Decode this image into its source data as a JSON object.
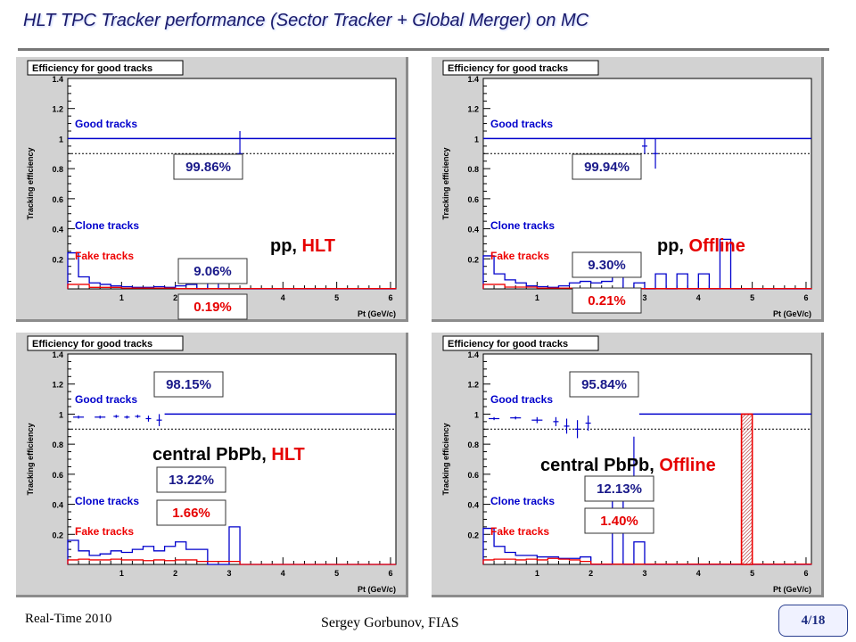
{
  "slide": {
    "title": "HLT TPC Tracker performance (Sector Tracker + Global Merger) on MC",
    "footer_left": "Real-Time 2010",
    "footer_center": "Sergey Gorbunov, FIAS",
    "page": "4/18"
  },
  "colors": {
    "good": "#0000cc",
    "fake": "#ee0000",
    "label_red": "#e60000",
    "hatch": "#c06060"
  },
  "chart_data": [
    {
      "type": "line",
      "panel_title": "Efficiency for good tracks",
      "ylabel": "Tracking efficiency",
      "xlabel": "Pt (GeV/c)",
      "xlim": [
        0,
        6.1
      ],
      "ylim": [
        0,
        1.4
      ],
      "xticks": [
        "1",
        "2",
        "3",
        "4",
        "5",
        "6"
      ],
      "yticks": [
        "0.2",
        "0.4",
        "0.6",
        "0.8",
        "1",
        "1.2",
        "1.4"
      ],
      "label_parts": [
        "pp, ",
        "HLT"
      ],
      "legend": {
        "good": "Good tracks",
        "clone": "Clone tracks",
        "fake": "Fake tracks"
      },
      "values": {
        "good": "99.86%",
        "clone": "9.06%",
        "fake": "0.19%"
      },
      "series": [
        {
          "name": "Good tracks",
          "kind": "points",
          "color": "good",
          "points": [
            [
              3.2,
              0.9,
              0.1,
              0.15
            ]
          ]
        },
        {
          "name": "Good tracks",
          "kind": "hline",
          "color": "good",
          "y": 1.0
        },
        {
          "name": "Clone tracks",
          "kind": "hist",
          "color": "good",
          "edges": [
            0,
            0.2,
            0.4,
            0.6,
            0.8,
            1.0,
            1.2,
            1.4,
            1.6,
            1.8,
            2.0,
            2.2,
            2.4,
            2.6,
            2.8,
            3.0,
            6.1
          ],
          "values": [
            0.24,
            0.08,
            0.04,
            0.03,
            0.02,
            0.015,
            0.01,
            0.01,
            0.015,
            0.01,
            0.02,
            0.03,
            0,
            0.08,
            0,
            0
          ]
        },
        {
          "name": "Fake tracks",
          "kind": "hist",
          "color": "fake",
          "edges": [
            0,
            0.4,
            1.0,
            2.0,
            6.1
          ],
          "values": [
            0.03,
            0.01,
            0.005,
            0.002
          ]
        }
      ]
    },
    {
      "type": "line",
      "panel_title": "Efficiency for good tracks",
      "ylabel": "Tracking efficiency",
      "xlabel": "Pt (GeV/c)",
      "xlim": [
        0,
        6.1
      ],
      "ylim": [
        0,
        1.4
      ],
      "xticks": [
        "1",
        "2",
        "3",
        "4",
        "5",
        "6"
      ],
      "yticks": [
        "0.2",
        "0.4",
        "0.6",
        "0.8",
        "1",
        "1.2",
        "1.4"
      ],
      "label_parts": [
        "pp, ",
        "Offline"
      ],
      "legend": {
        "good": "Good tracks",
        "clone": "Clone tracks",
        "fake": "Fake tracks"
      },
      "values": {
        "good": "99.94%",
        "clone": "9.30%",
        "fake": "0.21%"
      },
      "series": [
        {
          "name": "Good tracks",
          "kind": "points",
          "color": "good",
          "points": [
            [
              3.0,
              0.95,
              0.1,
              0.05
            ],
            [
              3.2,
              0.9,
              0.1,
              0.1
            ]
          ]
        },
        {
          "name": "Good tracks",
          "kind": "hline",
          "color": "good",
          "y": 1.0
        },
        {
          "name": "Clone tracks",
          "kind": "hist",
          "color": "good",
          "edges": [
            0,
            0.2,
            0.4,
            0.6,
            0.8,
            1.0,
            1.2,
            1.4,
            1.6,
            1.8,
            2.0,
            2.2,
            2.4,
            2.6,
            2.8,
            3.0,
            3.2,
            3.4,
            3.6,
            3.8,
            4.0,
            4.2,
            4.4,
            4.6,
            6.1
          ],
          "values": [
            0.22,
            0.1,
            0.06,
            0.04,
            0.02,
            0.015,
            0.01,
            0.02,
            0.04,
            0.05,
            0.04,
            0.05,
            0.1,
            0,
            0.04,
            0,
            0.1,
            0,
            0.1,
            0,
            0.1,
            0,
            0.33,
            0
          ]
        },
        {
          "name": "Fake tracks",
          "kind": "hist",
          "color": "fake",
          "edges": [
            0,
            0.4,
            1.0,
            2.0,
            6.1
          ],
          "values": [
            0.03,
            0.012,
            0.005,
            0.002
          ]
        }
      ]
    },
    {
      "type": "line",
      "panel_title": "Efficiency for good tracks",
      "ylabel": "Tracking efficiency",
      "xlabel": "Pt (GeV/c)",
      "xlim": [
        0,
        6.1
      ],
      "ylim": [
        0,
        1.4
      ],
      "xticks": [
        "1",
        "2",
        "3",
        "4",
        "5",
        "6"
      ],
      "yticks": [
        "0.2",
        "0.4",
        "0.6",
        "0.8",
        "1",
        "1.2",
        "1.4"
      ],
      "label_parts": [
        "central PbPb, ",
        "HLT"
      ],
      "legend": {
        "good": "Good tracks",
        "clone": "Clone tracks",
        "fake": "Fake tracks"
      },
      "values": {
        "good": "98.15%",
        "clone": "13.22%",
        "fake": "1.66%"
      },
      "series": [
        {
          "name": "Good tracks",
          "kind": "points",
          "color": "good",
          "points": [
            [
              0.2,
              0.98,
              0.2,
              0.01
            ],
            [
              0.6,
              0.98,
              0.2,
              0.01
            ],
            [
              0.9,
              0.985,
              0.1,
              0.01
            ],
            [
              1.1,
              0.98,
              0.1,
              0.01
            ],
            [
              1.3,
              0.985,
              0.1,
              0.01
            ],
            [
              1.5,
              0.97,
              0.1,
              0.02
            ],
            [
              1.7,
              0.96,
              0.1,
              0.04
            ]
          ]
        },
        {
          "name": "Good tracks",
          "kind": "hline",
          "color": "good",
          "y": 1.0,
          "from": 1.8
        },
        {
          "name": "Clone tracks",
          "kind": "hist",
          "color": "good",
          "edges": [
            0,
            0.2,
            0.4,
            0.6,
            0.8,
            1.0,
            1.2,
            1.4,
            1.6,
            1.8,
            2.0,
            2.2,
            2.4,
            2.6,
            2.8,
            3.0,
            3.2,
            6.1
          ],
          "values": [
            0.16,
            0.09,
            0.06,
            0.07,
            0.09,
            0.08,
            0.1,
            0.12,
            0.09,
            0.12,
            0.15,
            0.1,
            0.1,
            0,
            0,
            0.25,
            0
          ]
        },
        {
          "name": "Fake tracks",
          "kind": "hist",
          "color": "fake",
          "edges": [
            0,
            0.2,
            0.4,
            0.6,
            0.8,
            1.0,
            1.2,
            1.4,
            1.6,
            1.8,
            2.0,
            2.4,
            2.8,
            3.2,
            6.1
          ],
          "values": [
            0.03,
            0.035,
            0.03,
            0.03,
            0.035,
            0.03,
            0.03,
            0.025,
            0.03,
            0.025,
            0.03,
            0.02,
            0.02,
            0
          ]
        }
      ]
    },
    {
      "type": "line",
      "panel_title": "Efficiency for good tracks",
      "ylabel": "Tracking efficiency",
      "xlabel": "Pt (GeV/c)",
      "xlim": [
        0,
        6.1
      ],
      "ylim": [
        0,
        1.4
      ],
      "xticks": [
        "1",
        "2",
        "3",
        "4",
        "5",
        "6"
      ],
      "yticks": [
        "0.2",
        "0.4",
        "0.6",
        "0.8",
        "1",
        "1.2",
        "1.4"
      ],
      "label_parts": [
        "central PbPb, ",
        "Offline"
      ],
      "legend": {
        "good": "Good tracks",
        "clone": "Clone tracks",
        "fake": "Fake tracks"
      },
      "values": {
        "good": "95.84%",
        "clone": "12.13%",
        "fake": "1.40%"
      },
      "series": [
        {
          "name": "Good tracks",
          "kind": "points",
          "color": "good",
          "points": [
            [
              0.2,
              0.97,
              0.2,
              0.01
            ],
            [
              0.6,
              0.975,
              0.2,
              0.01
            ],
            [
              1.0,
              0.96,
              0.2,
              0.02
            ],
            [
              1.35,
              0.95,
              0.1,
              0.03
            ],
            [
              1.55,
              0.92,
              0.1,
              0.05
            ],
            [
              1.75,
              0.9,
              0.1,
              0.06
            ],
            [
              1.95,
              0.94,
              0.1,
              0.05
            ],
            [
              2.8,
              0.7,
              0.1,
              0.15
            ]
          ]
        },
        {
          "name": "Good tracks",
          "kind": "hline",
          "color": "good",
          "y": 1.0,
          "from": 2.9
        },
        {
          "name": "Clone tracks",
          "kind": "hist",
          "color": "good",
          "edges": [
            0,
            0.2,
            0.4,
            0.6,
            0.8,
            1.0,
            1.2,
            1.4,
            1.6,
            1.8,
            2.0,
            2.4,
            2.6,
            2.8,
            3.0,
            6.1
          ],
          "values": [
            0.24,
            0.12,
            0.08,
            0.06,
            0.06,
            0.05,
            0.05,
            0.04,
            0.04,
            0.05,
            0,
            0.5,
            0,
            0.15,
            0
          ]
        },
        {
          "name": "Fake tracks",
          "kind": "hist",
          "color": "fake",
          "edges": [
            0,
            0.2,
            0.4,
            0.6,
            0.8,
            1.0,
            1.2,
            1.4,
            1.6,
            1.8,
            2.0,
            4.8,
            5.0,
            6.1
          ],
          "values": [
            0.03,
            0.035,
            0.035,
            0.03,
            0.035,
            0.03,
            0.04,
            0.035,
            0.03,
            0.02,
            0.002,
            1.0,
            0.002
          ]
        }
      ]
    }
  ]
}
